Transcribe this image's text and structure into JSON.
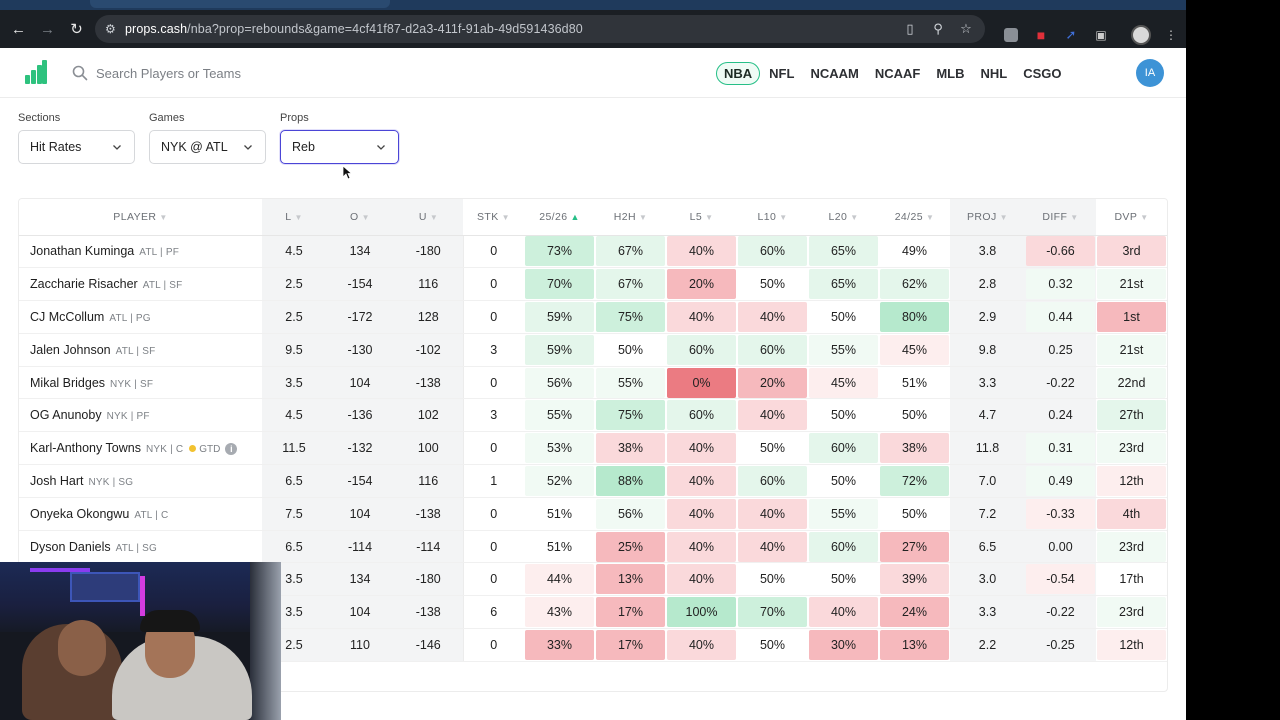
{
  "browser": {
    "url_host": "props.cash",
    "url_path": "/nba?prop=rebounds&game=4cf41f87-d2a3-411f-91ab-49d591436d80"
  },
  "header": {
    "search_placeholder": "Search Players or Teams",
    "leagues": [
      "NBA",
      "NFL",
      "NCAAM",
      "NCAAF",
      "MLB",
      "NHL",
      "CSGO"
    ],
    "active_league": "NBA",
    "avatar_initials": "IA"
  },
  "filters": {
    "sections": {
      "label": "Sections",
      "value": "Hit Rates"
    },
    "games": {
      "label": "Games",
      "value": "NYK @ ATL"
    },
    "props": {
      "label": "Props",
      "value": "Reb"
    }
  },
  "table": {
    "columns": [
      "PLAYER",
      "L",
      "O",
      "U",
      "STK",
      "25/26",
      "H2H",
      "L5",
      "L10",
      "L20",
      "24/25",
      "PROJ",
      "DIFF",
      "DVP"
    ],
    "sorted_column": "25/26",
    "rows": [
      {
        "name": "Jonathan Kuminga",
        "team": "ATL | PF",
        "status": "",
        "cells": [
          "4.5",
          "134",
          "-180",
          "0",
          "73%",
          "67%",
          "40%",
          "60%",
          "65%",
          "49%",
          "3.8",
          "-0.66",
          "3rd"
        ]
      },
      {
        "name": "Zaccharie Risacher",
        "team": "ATL | SF",
        "status": "",
        "cells": [
          "2.5",
          "-154",
          "116",
          "0",
          "70%",
          "67%",
          "20%",
          "50%",
          "65%",
          "62%",
          "2.8",
          "0.32",
          "21st"
        ]
      },
      {
        "name": "CJ McCollum",
        "team": "ATL | PG",
        "status": "",
        "cells": [
          "2.5",
          "-172",
          "128",
          "0",
          "59%",
          "75%",
          "40%",
          "40%",
          "50%",
          "80%",
          "2.9",
          "0.44",
          "1st"
        ]
      },
      {
        "name": "Jalen Johnson",
        "team": "ATL | SF",
        "status": "",
        "cells": [
          "9.5",
          "-130",
          "-102",
          "3",
          "59%",
          "50%",
          "60%",
          "60%",
          "55%",
          "45%",
          "9.8",
          "0.25",
          "21st"
        ]
      },
      {
        "name": "Mikal Bridges",
        "team": "NYK | SF",
        "status": "",
        "cells": [
          "3.5",
          "104",
          "-138",
          "0",
          "56%",
          "55%",
          "0%",
          "20%",
          "45%",
          "51%",
          "3.3",
          "-0.22",
          "22nd"
        ]
      },
      {
        "name": "OG Anunoby",
        "team": "NYK | PF",
        "status": "",
        "cells": [
          "4.5",
          "-136",
          "102",
          "3",
          "55%",
          "75%",
          "60%",
          "40%",
          "50%",
          "50%",
          "4.7",
          "0.24",
          "27th"
        ]
      },
      {
        "name": "Karl-Anthony Towns",
        "team": "NYK | C",
        "status": "GTD",
        "cells": [
          "11.5",
          "-132",
          "100",
          "0",
          "53%",
          "38%",
          "40%",
          "50%",
          "60%",
          "38%",
          "11.8",
          "0.31",
          "23rd"
        ]
      },
      {
        "name": "Josh Hart",
        "team": "NYK | SG",
        "status": "",
        "cells": [
          "6.5",
          "-154",
          "116",
          "1",
          "52%",
          "88%",
          "40%",
          "60%",
          "50%",
          "72%",
          "7.0",
          "0.49",
          "12th"
        ]
      },
      {
        "name": "Onyeka Okongwu",
        "team": "ATL | C",
        "status": "",
        "cells": [
          "7.5",
          "104",
          "-138",
          "0",
          "51%",
          "56%",
          "40%",
          "40%",
          "55%",
          "50%",
          "7.2",
          "-0.33",
          "4th"
        ]
      },
      {
        "name": "Dyson Daniels",
        "team": "ATL | SG",
        "status": "",
        "cells": [
          "6.5",
          "-114",
          "-114",
          "0",
          "51%",
          "25%",
          "40%",
          "40%",
          "60%",
          "27%",
          "6.5",
          "0.00",
          "23rd"
        ]
      },
      {
        "name": "",
        "team": "",
        "status": "",
        "cells": [
          "3.5",
          "134",
          "-180",
          "0",
          "44%",
          "13%",
          "40%",
          "50%",
          "50%",
          "39%",
          "3.0",
          "-0.54",
          "17th"
        ]
      },
      {
        "name": "",
        "team": "",
        "status": "",
        "cells": [
          "3.5",
          "104",
          "-138",
          "6",
          "43%",
          "17%",
          "100%",
          "70%",
          "40%",
          "24%",
          "3.3",
          "-0.22",
          "23rd"
        ]
      },
      {
        "name": "",
        "team": "",
        "status": "",
        "cells": [
          "2.5",
          "110",
          "-146",
          "0",
          "33%",
          "17%",
          "40%",
          "50%",
          "30%",
          "13%",
          "2.2",
          "-0.25",
          "12th"
        ]
      }
    ]
  },
  "colors": {
    "accent": "#26bf87",
    "focus": "#4b45d6",
    "green_strong": "#b6e9cd",
    "green_mid": "#cdf0dc",
    "green_light": "#e4f6eb",
    "green_faint": "#f1faf4",
    "red_strong": "#eb7b82",
    "red_mid": "#f6b9bd",
    "red_light": "#fad9db",
    "red_faint": "#fdeeee"
  }
}
